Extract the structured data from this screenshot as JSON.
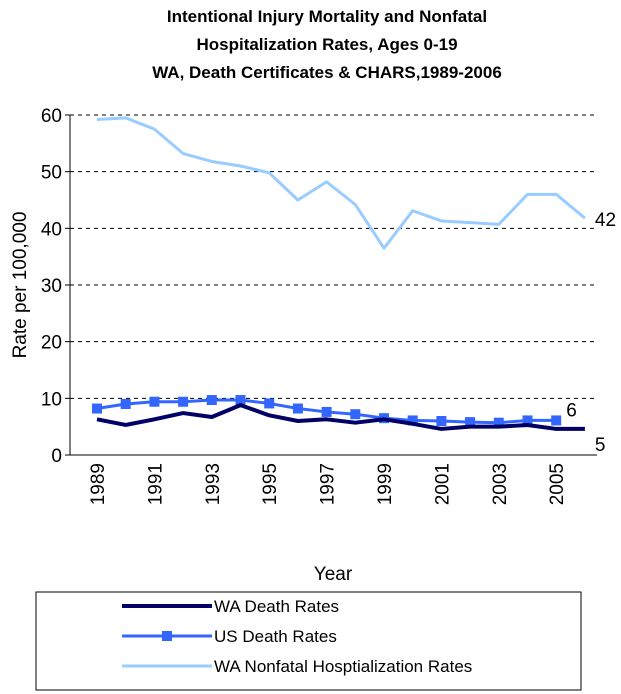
{
  "chart_data": {
    "type": "line",
    "title": [
      "Intentional Injury Mortality and Nonfatal",
      "Hospitalization Rates, Ages 0-19",
      "WA, Death Certificates & CHARS,1989-2006"
    ],
    "x_label": "Year",
    "y_label": "Rate per 100,000",
    "categories": [
      "1989",
      null,
      "1991",
      null,
      "1993",
      null,
      "1995",
      null,
      "1997",
      null,
      "1999",
      null,
      "2001",
      null,
      "2003",
      null,
      "2005",
      null
    ],
    "series": [
      {
        "name": "WA Death Rates",
        "color": "#000066",
        "marker": false,
        "values": [
          6.3,
          5.3,
          6.3,
          7.4,
          6.7,
          8.8,
          7.0,
          6.0,
          6.3,
          5.7,
          6.3,
          5.5,
          4.6,
          5.0,
          5.0,
          5.3,
          4.6,
          4.6
        ]
      },
      {
        "name": "US Death Rates",
        "color": "#3366ff",
        "marker": true,
        "values": [
          8.2,
          9.0,
          9.4,
          9.4,
          9.7,
          9.7,
          9.1,
          8.2,
          7.6,
          7.2,
          6.5,
          6.1,
          6.0,
          5.8,
          5.7,
          6.1,
          6.1,
          null
        ]
      },
      {
        "name": "WA Nonfatal Hosptialization Rates",
        "color": "#99ccff",
        "marker": false,
        "values": [
          59.2,
          59.5,
          57.5,
          53.2,
          51.8,
          51.0,
          49.8,
          45.0,
          48.2,
          44.2,
          36.5,
          43.1,
          41.3,
          41.0,
          40.7,
          46.0,
          46.0,
          41.8
        ]
      }
    ],
    "annotations": [
      {
        "text": "5",
        "series": 0
      },
      {
        "text": "6",
        "series": 1
      },
      {
        "text": "42",
        "series": 2
      }
    ],
    "ylim": [
      0,
      60
    ],
    "yticks": [
      0,
      10,
      20,
      30,
      40,
      50,
      60
    ],
    "grid": true,
    "legend": "bottom"
  }
}
